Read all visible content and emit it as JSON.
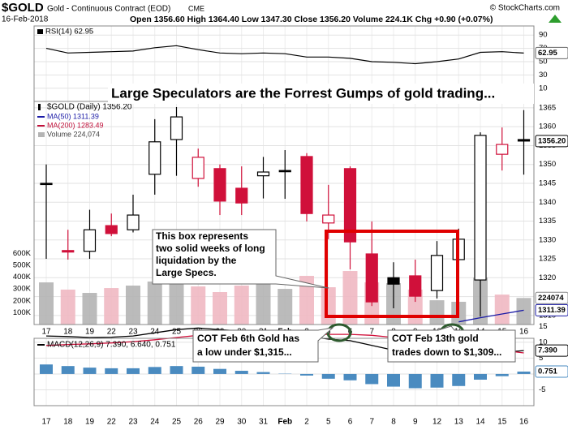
{
  "header": {
    "symbol": "$GOLD",
    "name": "Gold - Continuous Contract (EOD)",
    "exchange": "CME",
    "date": "16-Feb-2018",
    "quote": "Open 1356.60 High 1364.40 Low 1347.30 Close 1356.20 Volume 224.1K Chg +0.90 (+0.07%)",
    "credit": "© StockCharts.com"
  },
  "chart_data": [
    {
      "type": "line",
      "legend": "RSI(14) 62.95",
      "ylim": [
        0,
        100
      ],
      "yticks": [
        10,
        30,
        50,
        70,
        90
      ],
      "grid": true,
      "series": [
        {
          "color": "#000000",
          "values": [
            70,
            63,
            64,
            65,
            66,
            71,
            74,
            68,
            63,
            62,
            63,
            62,
            57,
            57,
            55,
            50,
            49,
            47,
            50,
            54,
            64,
            65,
            62.95
          ]
        }
      ]
    },
    {
      "type": "candlestick",
      "name": "$GOLD (Daily) 1356.20",
      "title": "Large Speculators are the Forrest Gumps of gold trading...",
      "categories": [
        "17",
        "18",
        "19",
        "22",
        "23",
        "24",
        "25",
        "26",
        "29",
        "30",
        "31",
        "Feb",
        "2",
        "5",
        "6",
        "7",
        "8",
        "9",
        "12",
        "13",
        "14",
        "15",
        "16"
      ],
      "open": [
        1345,
        1327.2,
        1327,
        1333.8,
        1332.7,
        1347.4,
        1356.6,
        1346.3,
        1348.9,
        1343.7,
        1347,
        1348.4,
        1352.1,
        1334.5,
        1348.9,
        1326.3,
        1320,
        1320.5,
        1316.6,
        1324.8,
        1319.4,
        1352.7,
        1356.6
      ],
      "high": [
        1350,
        1332.7,
        1338,
        1337,
        1342,
        1362,
        1365.2,
        1354.2,
        1350,
        1349.5,
        1352,
        1353.8,
        1353,
        1344.6,
        1349.5,
        1334.9,
        1324.1,
        1324.8,
        1329.7,
        1333,
        1358.5,
        1359.8,
        1364.4
      ],
      "low": [
        1325,
        1324.8,
        1325,
        1331,
        1332,
        1342,
        1347,
        1344.1,
        1336.6,
        1336.6,
        1341,
        1340.9,
        1334.9,
        1330.2,
        1322.2,
        1312.5,
        1311.9,
        1313.6,
        1314.5,
        1320.5,
        1309.7,
        1348.4,
        1347.3
      ],
      "close": [
        1344.8,
        1326.8,
        1332.7,
        1331.7,
        1336.6,
        1356,
        1362.6,
        1351.9,
        1340.3,
        1339.8,
        1348,
        1348.2,
        1337,
        1336.6,
        1329.5,
        1313.6,
        1318.3,
        1315.1,
        1325.9,
        1330.2,
        1357.7,
        1355.3,
        1356.2
      ],
      "close_tag": "1356.20",
      "up_color": "#000000",
      "down_color": "#d0103a",
      "ylim": [
        1307.6,
        1366.7
      ],
      "yticks": [
        1310,
        1315,
        1320,
        1325,
        1330,
        1335,
        1340,
        1345,
        1350,
        1355,
        1360,
        1365
      ],
      "grid": true,
      "series": [
        {
          "name": "MA(50) 1311.39",
          "color": "#1a1aa6",
          "values": [
            null,
            null,
            null,
            null,
            null,
            null,
            null,
            null,
            null,
            null,
            null,
            null,
            null,
            null,
            null,
            null,
            null,
            null,
            null,
            1308.3,
            1309.4,
            1310.4,
            1311.39
          ]
        },
        {
          "name": "MA(200) 1283.49",
          "color": "#c0103a",
          "values": [
            null,
            null,
            null,
            null,
            null,
            null,
            null,
            null,
            null,
            null,
            null,
            null,
            null,
            null,
            null,
            null,
            null,
            null,
            null,
            null,
            null,
            null,
            null
          ]
        }
      ],
      "volume": {
        "name": "Volume 224,074",
        "up_color": "#b4b4b4",
        "down_color": "#f0b8c2",
        "ylim": [
          0,
          1884000
        ],
        "yticks": [
          {
            "value": 100000,
            "label": "100K"
          },
          {
            "value": 200000,
            "label": "200K"
          },
          {
            "value": 300000,
            "label": "300K"
          },
          {
            "value": 400000,
            "label": "400K"
          },
          {
            "value": 500000,
            "label": "500K"
          },
          {
            "value": 600000,
            "label": "600K"
          }
        ],
        "values": [
          356000,
          295000,
          267000,
          308000,
          329000,
          363000,
          349000,
          322000,
          274000,
          329000,
          363000,
          301000,
          411000,
          315000,
          452000,
          356000,
          349000,
          295000,
          205000,
          192000,
          397000,
          253000,
          224074
        ]
      },
      "annotations": [
        {
          "lines": [
            "This box represents",
            "two solid weeks of long",
            "liquidation by the",
            "Large Specs."
          ]
        },
        {
          "lines": [
            "COT Feb 6th Gold has",
            "a low under $1,315..."
          ]
        },
        {
          "lines": [
            "COT Feb 13th gold",
            "trades down to $1,309..."
          ]
        }
      ]
    },
    {
      "type": "macd",
      "legend": "MACD(12,26,9) 7.390, 6.640, 0.751",
      "categories": [
        "17",
        "18",
        "19",
        "22",
        "23",
        "24",
        "25",
        "26",
        "29",
        "30",
        "31",
        "Feb",
        "2",
        "5",
        "6",
        "7",
        "8",
        "9",
        "12",
        "13",
        "14",
        "15",
        "16"
      ],
      "ylim": [
        -10,
        15.6
      ],
      "yticks": [
        -5,
        0,
        5,
        10,
        15
      ],
      "grid": true,
      "series": [
        {
          "color": "#000000",
          "values": [
            12,
            11.8,
            11.5,
            11.6,
            12,
            13,
            14,
            14.5,
            14,
            13.5,
            13.2,
            12.8,
            12,
            11,
            10.5,
            9,
            7.5,
            6,
            5,
            4.5,
            6,
            6.8,
            7.39
          ],
          "value_labels": [
            null,
            null,
            null,
            null,
            null,
            null,
            null,
            null,
            null,
            null,
            null,
            null,
            null,
            null,
            null,
            null,
            null,
            null,
            null,
            null,
            null,
            null,
            "7.390"
          ]
        },
        {
          "color": "#d0103a",
          "values": [
            9,
            9.3,
            9.5,
            9.8,
            10.2,
            10.8,
            11.5,
            12.2,
            12.4,
            12.5,
            12.6,
            12.7,
            12.5,
            12.5,
            12.5,
            12.2,
            11.5,
            10.5,
            9.3,
            8.3,
            7.8,
            7.5,
            6.64
          ]
        }
      ],
      "histogram": {
        "color": "#4a8bc0",
        "values": [
          3,
          2.5,
          2,
          1.8,
          1.8,
          2.2,
          2.5,
          2.3,
          1.6,
          1,
          0.6,
          0.1,
          -0.5,
          -1.5,
          -2,
          -3.2,
          -4,
          -4.5,
          -4.3,
          -3.8,
          -1.8,
          -0.7,
          0.751
        ]
      }
    }
  ]
}
